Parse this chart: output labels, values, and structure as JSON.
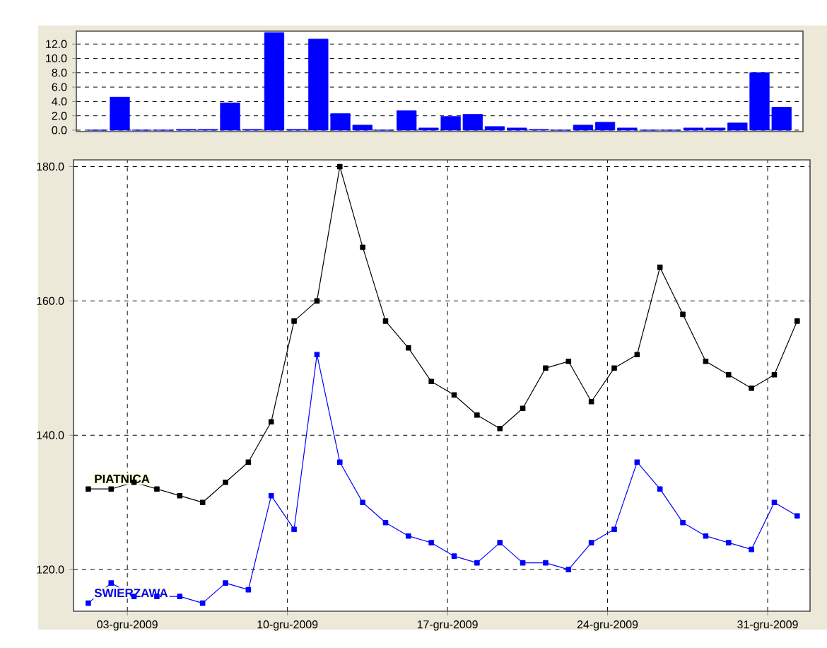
{
  "chart_data": [
    {
      "type": "bar",
      "categories": [
        null,
        null,
        null,
        null,
        null,
        null,
        null,
        null,
        null,
        null,
        null,
        null,
        null,
        null,
        null,
        null,
        null,
        null,
        null,
        null,
        null,
        null,
        null,
        null,
        null,
        null,
        null,
        null,
        null,
        null,
        null,
        null
      ],
      "values": [
        0.0,
        4.6,
        0.0,
        0.0,
        0.1,
        0.1,
        3.8,
        0.1,
        13.6,
        0.1,
        12.7,
        2.3,
        0.7,
        0.0,
        2.7,
        0.3,
        1.9,
        2.2,
        0.5,
        0.3,
        0.1,
        0.0,
        0.7,
        1.1,
        0.3,
        0.0,
        0.0,
        0.3,
        0.3,
        1.0,
        8.0,
        3.2
      ],
      "color": "#0000ff",
      "ylim": [
        -0.2,
        13.8
      ],
      "yticks": [
        {
          "value": 0,
          "label": "0.0"
        },
        {
          "value": 2,
          "label": "2.0"
        },
        {
          "value": 4,
          "label": "4.0"
        },
        {
          "value": 6,
          "label": "6.0"
        },
        {
          "value": 8,
          "label": "8.0"
        },
        {
          "value": 10,
          "label": "10.0"
        },
        {
          "value": 12,
          "label": "12.0"
        }
      ],
      "grid": "y"
    },
    {
      "type": "line",
      "x": [
        "2009-12-01T07:00",
        "2009-12-02T07:00",
        "2009-12-03T07:00",
        "2009-12-04T07:00",
        "2009-12-05T07:00",
        "2009-12-06T07:00",
        "2009-12-07T07:00",
        "2009-12-08T07:00",
        "2009-12-09T07:00",
        "2009-12-10T07:00",
        "2009-12-11T07:00",
        "2009-12-12T07:00",
        "2009-12-13T07:00",
        "2009-12-14T07:00",
        "2009-12-15T07:00",
        "2009-12-16T07:00",
        "2009-12-17T07:00",
        "2009-12-18T07:00",
        "2009-12-19T07:00",
        "2009-12-20T07:00",
        "2009-12-21T07:00",
        "2009-12-22T07:00",
        "2009-12-23T07:00",
        "2009-12-24T07:00",
        "2009-12-25T07:00",
        "2009-12-26T07:00",
        "2009-12-27T07:00",
        "2009-12-28T07:00",
        "2009-12-29T07:00",
        "2009-12-30T07:00",
        "2009-12-31T07:00",
        "2010-01-01T07:00"
      ],
      "series": [
        {
          "name": "PIATNICA",
          "color": "#000000",
          "values": [
            132,
            132,
            133,
            132,
            131,
            130,
            133,
            136,
            142,
            157,
            160,
            180,
            168,
            157,
            153,
            148,
            146,
            143,
            141,
            144,
            150,
            151,
            145,
            150,
            152,
            165,
            158,
            151,
            149,
            147,
            149,
            157
          ]
        },
        {
          "name": "SWIERZAWA",
          "color": "#0000ff",
          "values": [
            115,
            118,
            116,
            116,
            116,
            115,
            118,
            117,
            131,
            126,
            152,
            136,
            130,
            127,
            125,
            124,
            122,
            121,
            124,
            121,
            121,
            120,
            124,
            126,
            136,
            132,
            127,
            125,
            124,
            123,
            130,
            128
          ]
        }
      ],
      "xlim": [
        "2009-11-30T15:30",
        "2010-01-01T20:30"
      ],
      "xticks": [
        {
          "value": "2009-12-03",
          "label": "03-gru-2009"
        },
        {
          "value": "2009-12-10",
          "label": "10-gru-2009"
        },
        {
          "value": "2009-12-17",
          "label": "17-gru-2009"
        },
        {
          "value": "2009-12-24",
          "label": "24-gru-2009"
        },
        {
          "value": "2009-12-31",
          "label": "31-gru-2009"
        }
      ],
      "ylim": [
        113.8,
        181
      ],
      "yticks": [
        {
          "value": 120,
          "label": "120.0"
        },
        {
          "value": 140,
          "label": "140.0"
        },
        {
          "value": 160,
          "label": "160.0"
        },
        {
          "value": 180,
          "label": "180.0"
        }
      ],
      "grid": true,
      "marker": "square"
    }
  ]
}
